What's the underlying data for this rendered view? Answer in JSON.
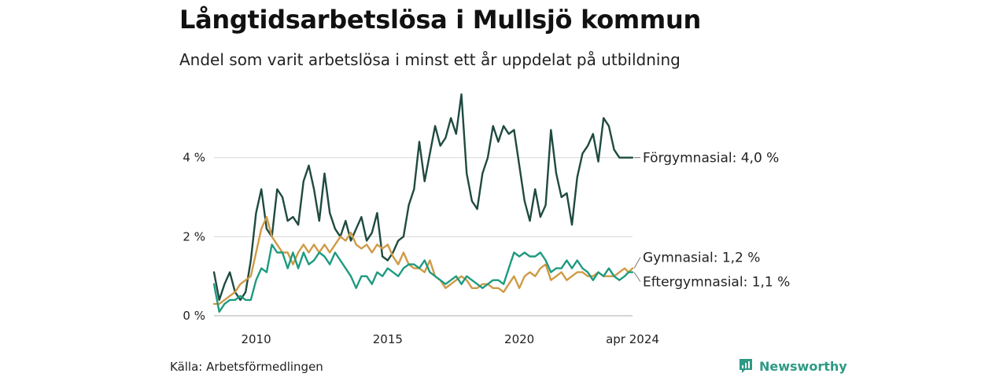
{
  "header": {
    "title": "Långtidsarbetslösa i Mullsjö kommun",
    "subtitle": "Andel som varit arbetslösa i minst ett år uppdelat på utbildning"
  },
  "footer": {
    "source": "Källa: Arbetsförmedlingen",
    "brand": "Newsworthy"
  },
  "chart_data": {
    "type": "line",
    "title": "Långtidsarbetslösa i Mullsjö kommun",
    "subtitle": "Andel som varit arbetslösa i minst ett år uppdelat på utbildning",
    "xlabel": "",
    "ylabel": "",
    "x_range": [
      2008.4,
      2024.3
    ],
    "ylim": [
      0,
      6
    ],
    "y_ticks": [
      {
        "value": 0,
        "label": "0 %"
      },
      {
        "value": 2,
        "label": "2 %"
      },
      {
        "value": 4,
        "label": "4 %"
      }
    ],
    "x_ticks": [
      {
        "value": 2010.0,
        "label": "2010"
      },
      {
        "value": 2015.0,
        "label": "2015"
      },
      {
        "value": 2020.0,
        "label": "2020"
      },
      {
        "value": 2024.3,
        "label": "apr 2024"
      }
    ],
    "grid": true,
    "series": [
      {
        "name": "Förgymnasial",
        "label": "Förgymnasial: 4,0 %",
        "color": "#1f4a40",
        "x": [
          2008.4,
          2008.6,
          2008.8,
          2009.0,
          2009.2,
          2009.4,
          2009.6,
          2009.8,
          2010.0,
          2010.2,
          2010.4,
          2010.6,
          2010.8,
          2011.0,
          2011.2,
          2011.4,
          2011.6,
          2011.8,
          2012.0,
          2012.2,
          2012.4,
          2012.6,
          2012.8,
          2013.0,
          2013.2,
          2013.4,
          2013.6,
          2013.8,
          2014.0,
          2014.2,
          2014.4,
          2014.6,
          2014.8,
          2015.0,
          2015.2,
          2015.4,
          2015.6,
          2015.8,
          2016.0,
          2016.2,
          2016.4,
          2016.6,
          2016.8,
          2017.0,
          2017.2,
          2017.4,
          2017.6,
          2017.8,
          2018.0,
          2018.2,
          2018.4,
          2018.6,
          2018.8,
          2019.0,
          2019.2,
          2019.4,
          2019.6,
          2019.8,
          2020.0,
          2020.2,
          2020.4,
          2020.6,
          2020.8,
          2021.0,
          2021.2,
          2021.4,
          2021.6,
          2021.8,
          2022.0,
          2022.2,
          2022.4,
          2022.6,
          2022.8,
          2023.0,
          2023.2,
          2023.4,
          2023.6,
          2023.8,
          2024.0,
          2024.15,
          2024.3
        ],
        "values": [
          1.1,
          0.4,
          0.8,
          1.1,
          0.6,
          0.4,
          0.6,
          1.4,
          2.6,
          3.2,
          2.2,
          2.0,
          3.2,
          3.0,
          2.4,
          2.5,
          2.3,
          3.4,
          3.8,
          3.2,
          2.4,
          3.6,
          2.6,
          2.2,
          2.0,
          2.4,
          1.9,
          2.2,
          2.5,
          1.9,
          2.1,
          2.6,
          1.5,
          1.4,
          1.6,
          1.9,
          2.0,
          2.8,
          3.2,
          4.4,
          3.4,
          4.1,
          4.8,
          4.3,
          4.5,
          5.0,
          4.6,
          5.6,
          3.6,
          2.9,
          2.7,
          3.6,
          4.0,
          4.8,
          4.4,
          4.8,
          4.6,
          4.7,
          3.8,
          2.9,
          2.4,
          3.2,
          2.5,
          2.8,
          4.7,
          3.6,
          3.0,
          3.1,
          2.3,
          3.5,
          4.1,
          4.3,
          4.6,
          3.9,
          5.0,
          4.8,
          4.2,
          4.0,
          4.0,
          4.0,
          4.0
        ]
      },
      {
        "name": "Gymnasial",
        "label": "Gymnasial: 1,2 %",
        "color": "#cf9a45",
        "x": [
          2008.4,
          2008.6,
          2008.8,
          2009.0,
          2009.2,
          2009.4,
          2009.6,
          2009.8,
          2010.0,
          2010.2,
          2010.4,
          2010.6,
          2010.8,
          2011.0,
          2011.2,
          2011.4,
          2011.6,
          2011.8,
          2012.0,
          2012.2,
          2012.4,
          2012.6,
          2012.8,
          2013.0,
          2013.2,
          2013.4,
          2013.6,
          2013.8,
          2014.0,
          2014.2,
          2014.4,
          2014.6,
          2014.8,
          2015.0,
          2015.2,
          2015.4,
          2015.6,
          2015.8,
          2016.0,
          2016.2,
          2016.4,
          2016.6,
          2016.8,
          2017.0,
          2017.2,
          2017.4,
          2017.6,
          2017.8,
          2018.0,
          2018.2,
          2018.4,
          2018.6,
          2018.8,
          2019.0,
          2019.2,
          2019.4,
          2019.6,
          2019.8,
          2020.0,
          2020.2,
          2020.4,
          2020.6,
          2020.8,
          2021.0,
          2021.2,
          2021.4,
          2021.6,
          2021.8,
          2022.0,
          2022.2,
          2022.4,
          2022.6,
          2022.8,
          2023.0,
          2023.2,
          2023.4,
          2023.6,
          2023.8,
          2024.0,
          2024.15,
          2024.3
        ],
        "values": [
          0.3,
          0.3,
          0.4,
          0.5,
          0.6,
          0.8,
          0.9,
          1.0,
          1.6,
          2.2,
          2.5,
          2.0,
          1.8,
          1.6,
          1.6,
          1.3,
          1.6,
          1.8,
          1.6,
          1.8,
          1.6,
          1.8,
          1.6,
          1.8,
          2.0,
          1.9,
          2.1,
          1.8,
          1.7,
          1.8,
          1.6,
          1.8,
          1.7,
          1.8,
          1.5,
          1.3,
          1.6,
          1.3,
          1.2,
          1.2,
          1.1,
          1.4,
          1.0,
          0.9,
          0.7,
          0.8,
          0.9,
          1.0,
          0.9,
          0.7,
          0.7,
          0.8,
          0.8,
          0.7,
          0.7,
          0.6,
          0.8,
          1.0,
          0.7,
          1.0,
          1.1,
          1.0,
          1.2,
          1.3,
          0.9,
          1.0,
          1.1,
          0.9,
          1.0,
          1.1,
          1.1,
          1.0,
          1.0,
          1.1,
          1.0,
          1.0,
          1.0,
          1.1,
          1.2,
          1.1,
          1.2
        ]
      },
      {
        "name": "Eftergymnasial",
        "label": "Eftergymnasial: 1,1 %",
        "color": "#1e9a80",
        "x": [
          2008.4,
          2008.6,
          2008.8,
          2009.0,
          2009.2,
          2009.4,
          2009.6,
          2009.8,
          2010.0,
          2010.2,
          2010.4,
          2010.6,
          2010.8,
          2011.0,
          2011.2,
          2011.4,
          2011.6,
          2011.8,
          2012.0,
          2012.2,
          2012.4,
          2012.6,
          2012.8,
          2013.0,
          2013.2,
          2013.4,
          2013.6,
          2013.8,
          2014.0,
          2014.2,
          2014.4,
          2014.6,
          2014.8,
          2015.0,
          2015.2,
          2015.4,
          2015.6,
          2015.8,
          2016.0,
          2016.2,
          2016.4,
          2016.6,
          2016.8,
          2017.0,
          2017.2,
          2017.4,
          2017.6,
          2017.8,
          2018.0,
          2018.2,
          2018.4,
          2018.6,
          2018.8,
          2019.0,
          2019.2,
          2019.4,
          2019.6,
          2019.8,
          2020.0,
          2020.2,
          2020.4,
          2020.6,
          2020.8,
          2021.0,
          2021.2,
          2021.4,
          2021.6,
          2021.8,
          2022.0,
          2022.2,
          2022.4,
          2022.6,
          2022.8,
          2023.0,
          2023.2,
          2023.4,
          2023.6,
          2023.8,
          2024.0,
          2024.15,
          2024.3
        ],
        "values": [
          0.8,
          0.1,
          0.3,
          0.4,
          0.4,
          0.5,
          0.4,
          0.4,
          0.9,
          1.2,
          1.1,
          1.8,
          1.6,
          1.6,
          1.2,
          1.6,
          1.2,
          1.6,
          1.3,
          1.4,
          1.6,
          1.5,
          1.3,
          1.6,
          1.4,
          1.2,
          1.0,
          0.7,
          1.0,
          1.0,
          0.8,
          1.1,
          1.0,
          1.2,
          1.1,
          1.0,
          1.2,
          1.3,
          1.3,
          1.2,
          1.4,
          1.1,
          1.0,
          0.9,
          0.8,
          0.9,
          1.0,
          0.8,
          1.0,
          0.9,
          0.8,
          0.7,
          0.8,
          0.9,
          0.9,
          0.8,
          1.2,
          1.6,
          1.5,
          1.6,
          1.5,
          1.5,
          1.6,
          1.4,
          1.1,
          1.2,
          1.2,
          1.4,
          1.2,
          1.4,
          1.2,
          1.1,
          0.9,
          1.1,
          1.0,
          1.2,
          1.0,
          0.9,
          1.0,
          1.1,
          1.1
        ]
      }
    ]
  }
}
